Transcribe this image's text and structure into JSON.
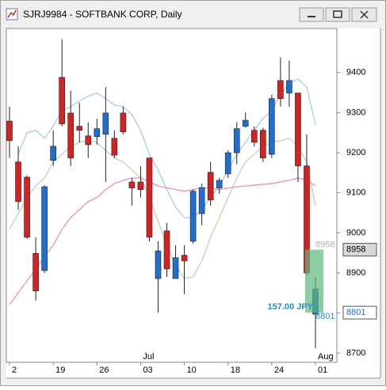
{
  "chart_data": {
    "type": "candlestick",
    "title": "SJRJ9984 - SOFTBANK CORP, Daily",
    "categories": [
      "2",
      null,
      null,
      null,
      null,
      "19",
      null,
      null,
      null,
      null,
      "26",
      null,
      null,
      null,
      null,
      "03",
      null,
      null,
      null,
      null,
      "10",
      null,
      null,
      null,
      null,
      "18",
      null,
      null,
      null,
      null,
      "24",
      null,
      null,
      null,
      null,
      "01"
    ],
    "months": [
      null,
      null,
      null,
      null,
      null,
      null,
      null,
      null,
      null,
      null,
      null,
      null,
      null,
      null,
      null,
      "Jul",
      null,
      null,
      null,
      null,
      null,
      null,
      null,
      null,
      null,
      null,
      null,
      null,
      null,
      null,
      null,
      null,
      null,
      null,
      null,
      "Aug"
    ],
    "open": [
      9279,
      9177,
      9139,
      8949,
      8906,
      9181,
      9388,
      9299,
      9266,
      9242,
      9240,
      9246,
      9236,
      9299,
      9127,
      9127,
      9187,
      8886,
      9005,
      8886,
      8944,
      8979,
      9048,
      9151,
      9112,
      9147,
      9200,
      9266,
      9256,
      9256,
      9196,
      9380,
      9349,
      9349,
      9167,
      8797
    ],
    "high": [
      9315,
      9216,
      9143,
      8989,
      9119,
      9256,
      9483,
      9355,
      9325,
      9276,
      9285,
      9364,
      9256,
      9315,
      9137,
      9167,
      9187,
      8979,
      9025,
      8969,
      8969,
      9108,
      9123,
      9177,
      9137,
      9206,
      9276,
      9301,
      9266,
      9262,
      9345,
      9438,
      9430,
      9349,
      9246,
      8890
    ],
    "low": [
      9187,
      9058,
      8985,
      8831,
      8900,
      9167,
      9266,
      9167,
      9226,
      9187,
      9220,
      9127,
      9187,
      9246,
      9068,
      9088,
      8979,
      8801,
      8890,
      8886,
      8847,
      8973,
      9019,
      9068,
      9098,
      9137,
      9171,
      9262,
      9216,
      9177,
      9187,
      9315,
      9315,
      9127,
      8894,
      8712
    ],
    "close": [
      9230,
      9078,
      8989,
      8855,
      9115,
      9216,
      9272,
      9187,
      9256,
      9220,
      9260,
      9299,
      9194,
      9252,
      9112,
      9108,
      8989,
      8955,
      8910,
      8938,
      8930,
      9104,
      9113,
      9082,
      9131,
      9200,
      9260,
      9281,
      9226,
      9187,
      9335,
      9335,
      9380,
      9167,
      8900,
      8860
    ],
    "up_color": "#1f6fd0",
    "down_color": "#d42222",
    "series": [
      {
        "color": "#a9c9ea",
        "values": [
          null,
          9196,
          9250,
          9256,
          9236,
          9266,
          9305,
          9315,
          9329,
          9341,
          9349,
          9335,
          9319,
          9315,
          9295,
          9256,
          9196,
          9157,
          9108,
          9064,
          9038,
          9038,
          9058,
          9088,
          9117,
          9157,
          9196,
          9226,
          9256,
          9285,
          9305,
          9345,
          9374,
          9384,
          9364,
          9270
        ]
      },
      {
        "color": "#b8d8b0",
        "values": [
          9009,
          9048,
          9088,
          9117,
          9137,
          9177,
          9196,
          9216,
          9226,
          9230,
          9226,
          9206,
          9187,
          9177,
          9157,
          9137,
          9088,
          9029,
          8969,
          8920,
          8886,
          8890,
          8930,
          8989,
          9038,
          9088,
          9137,
          9177,
          9196,
          9216,
          9226,
          9230,
          9236,
          9216,
          9177,
          9068
        ]
      },
      {
        "color": "#f28cb8",
        "values": [
          8821,
          8851,
          8880,
          8910,
          8940,
          8969,
          9009,
          9038,
          9058,
          9078,
          9088,
          9108,
          9123,
          9131,
          9137,
          9137,
          9127,
          9117,
          9112,
          9108,
          9104,
          9108,
          9112,
          9112,
          9108,
          9112,
          9115,
          9117,
          9119,
          9121,
          9123,
          9127,
          9131,
          9137,
          9131,
          9117
        ]
      }
    ],
    "ylim": [
      8677,
      9510
    ],
    "yticks": [
      8700,
      8800,
      8900,
      9000,
      9100,
      9200,
      9300,
      9400
    ],
    "measure": {
      "from": 8958,
      "to": 8801,
      "label": "157.00 JPY",
      "color": "#5cb87a"
    },
    "price_tags": [
      8958,
      8801
    ]
  }
}
